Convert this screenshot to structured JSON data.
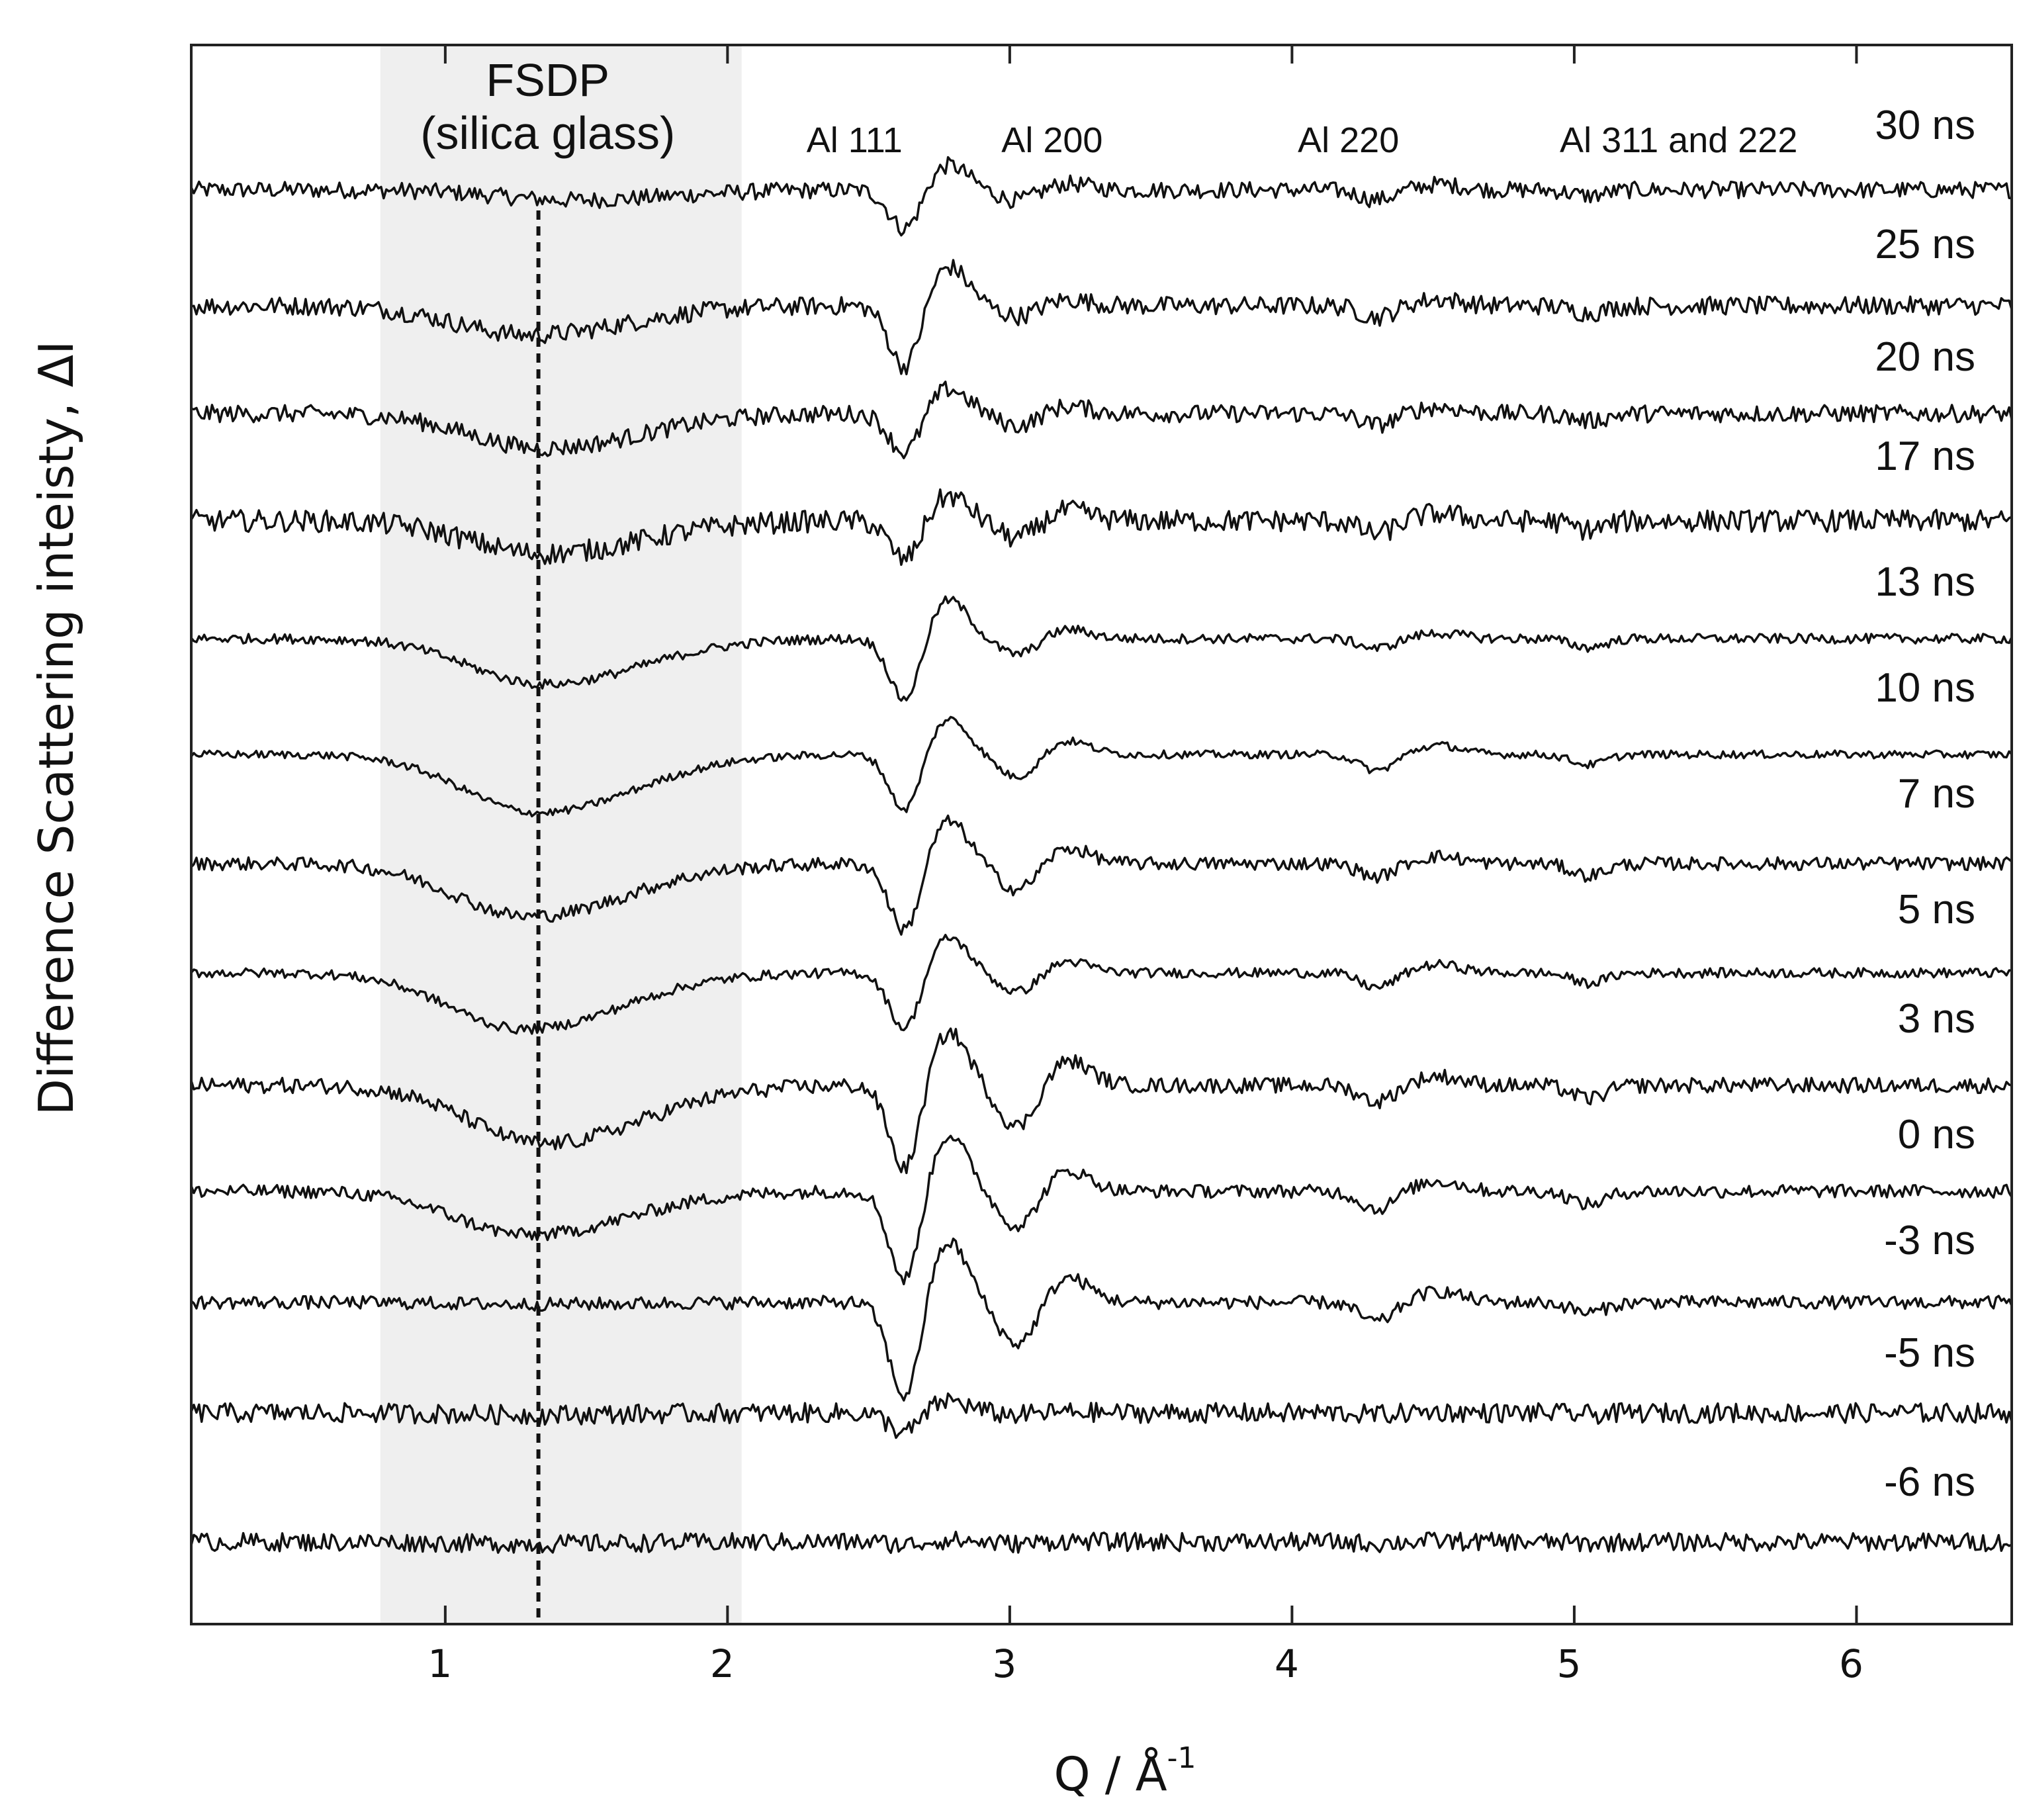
{
  "chart_data": {
    "type": "line",
    "title": "",
    "xlabel": "Q / Å",
    "xlabel_superscript": "-1",
    "ylabel": "Difference Scattering inteisty, ΔI",
    "xlim": [
      0.1,
      6.55
    ],
    "xticks": [
      1,
      2,
      3,
      4,
      5,
      6
    ],
    "grid": false,
    "legend": "none",
    "shaded_region": {
      "x_from": 0.77,
      "x_to": 2.05,
      "label_line1": "FSDP",
      "label_line2": "(silica glass)"
    },
    "reference_line": {
      "x": 1.33,
      "style": "dashed"
    },
    "peak_labels": [
      {
        "text": "Al 111",
        "x": 2.45
      },
      {
        "text": "Al 200",
        "x": 3.15
      },
      {
        "text": "Al 220",
        "x": 4.2
      },
      {
        "text": "Al 311 and 222",
        "x": 5.37
      }
    ],
    "series": [
      {
        "name": "30 ns",
        "fsdp_depth": 0.28,
        "fsdp_center": 1.45,
        "al111": 0.7,
        "al200": 0.3,
        "al220": 0.3,
        "al311": 0.2,
        "noise": 0.38
      },
      {
        "name": "25 ns",
        "fsdp_depth": 0.8,
        "fsdp_center": 1.3,
        "al111": 1.1,
        "al200": 0.3,
        "al220": 0.35,
        "al311": 0.25,
        "noise": 0.42
      },
      {
        "name": "20 ns",
        "fsdp_depth": 0.95,
        "fsdp_center": 1.35,
        "al111": 0.7,
        "al200": 0.35,
        "al220": 0.35,
        "al311": 0.25,
        "noise": 0.4
      },
      {
        "name": "17 ns",
        "fsdp_depth": 0.9,
        "fsdp_center": 1.35,
        "al111": 0.7,
        "al200": 0.5,
        "al220": 0.4,
        "al311": 0.3,
        "noise": 0.5
      },
      {
        "name": "13 ns",
        "fsdp_depth": 1.25,
        "fsdp_center": 1.35,
        "al111": 1.1,
        "al200": 0.45,
        "al220": 0.3,
        "al311": 0.3,
        "noise": 0.22
      },
      {
        "name": "10 ns",
        "fsdp_depth": 1.6,
        "fsdp_center": 1.33,
        "al111": 1.0,
        "al200": 0.65,
        "al220": 0.5,
        "al311": 0.35,
        "noise": 0.18
      },
      {
        "name": "7 ns",
        "fsdp_depth": 1.45,
        "fsdp_center": 1.3,
        "al111": 1.2,
        "al200": 0.75,
        "al220": 0.4,
        "al311": 0.4,
        "noise": 0.3
      },
      {
        "name": "5 ns",
        "fsdp_depth": 1.55,
        "fsdp_center": 1.28,
        "al111": 1.0,
        "al200": 0.55,
        "al220": 0.45,
        "al311": 0.35,
        "noise": 0.22
      },
      {
        "name": "3 ns",
        "fsdp_depth": 1.6,
        "fsdp_center": 1.35,
        "al111": 1.5,
        "al200": 1.2,
        "al220": 0.5,
        "al311": 0.45,
        "noise": 0.35
      },
      {
        "name": "0 ns",
        "fsdp_depth": 1.2,
        "fsdp_center": 1.3,
        "al111": 1.6,
        "al200": 1.0,
        "al220": 0.55,
        "al311": 0.45,
        "noise": 0.3
      },
      {
        "name": "-3 ns",
        "fsdp_depth": 0.05,
        "fsdp_center": 1.3,
        "al111": 1.7,
        "al200": 1.2,
        "al220": 0.6,
        "al311": 0.35,
        "noise": 0.3
      },
      {
        "name": "-5 ns",
        "fsdp_depth": 0.05,
        "fsdp_center": 1.3,
        "al111": 0.35,
        "al200": 0.05,
        "al220": 0.05,
        "al311": 0.05,
        "noise": 0.45
      },
      {
        "name": "-6 ns",
        "fsdp_depth": 0.05,
        "fsdp_center": 1.3,
        "al111": 0.05,
        "al200": 0.05,
        "al220": 0.05,
        "al311": 0.05,
        "noise": 0.42
      }
    ]
  }
}
